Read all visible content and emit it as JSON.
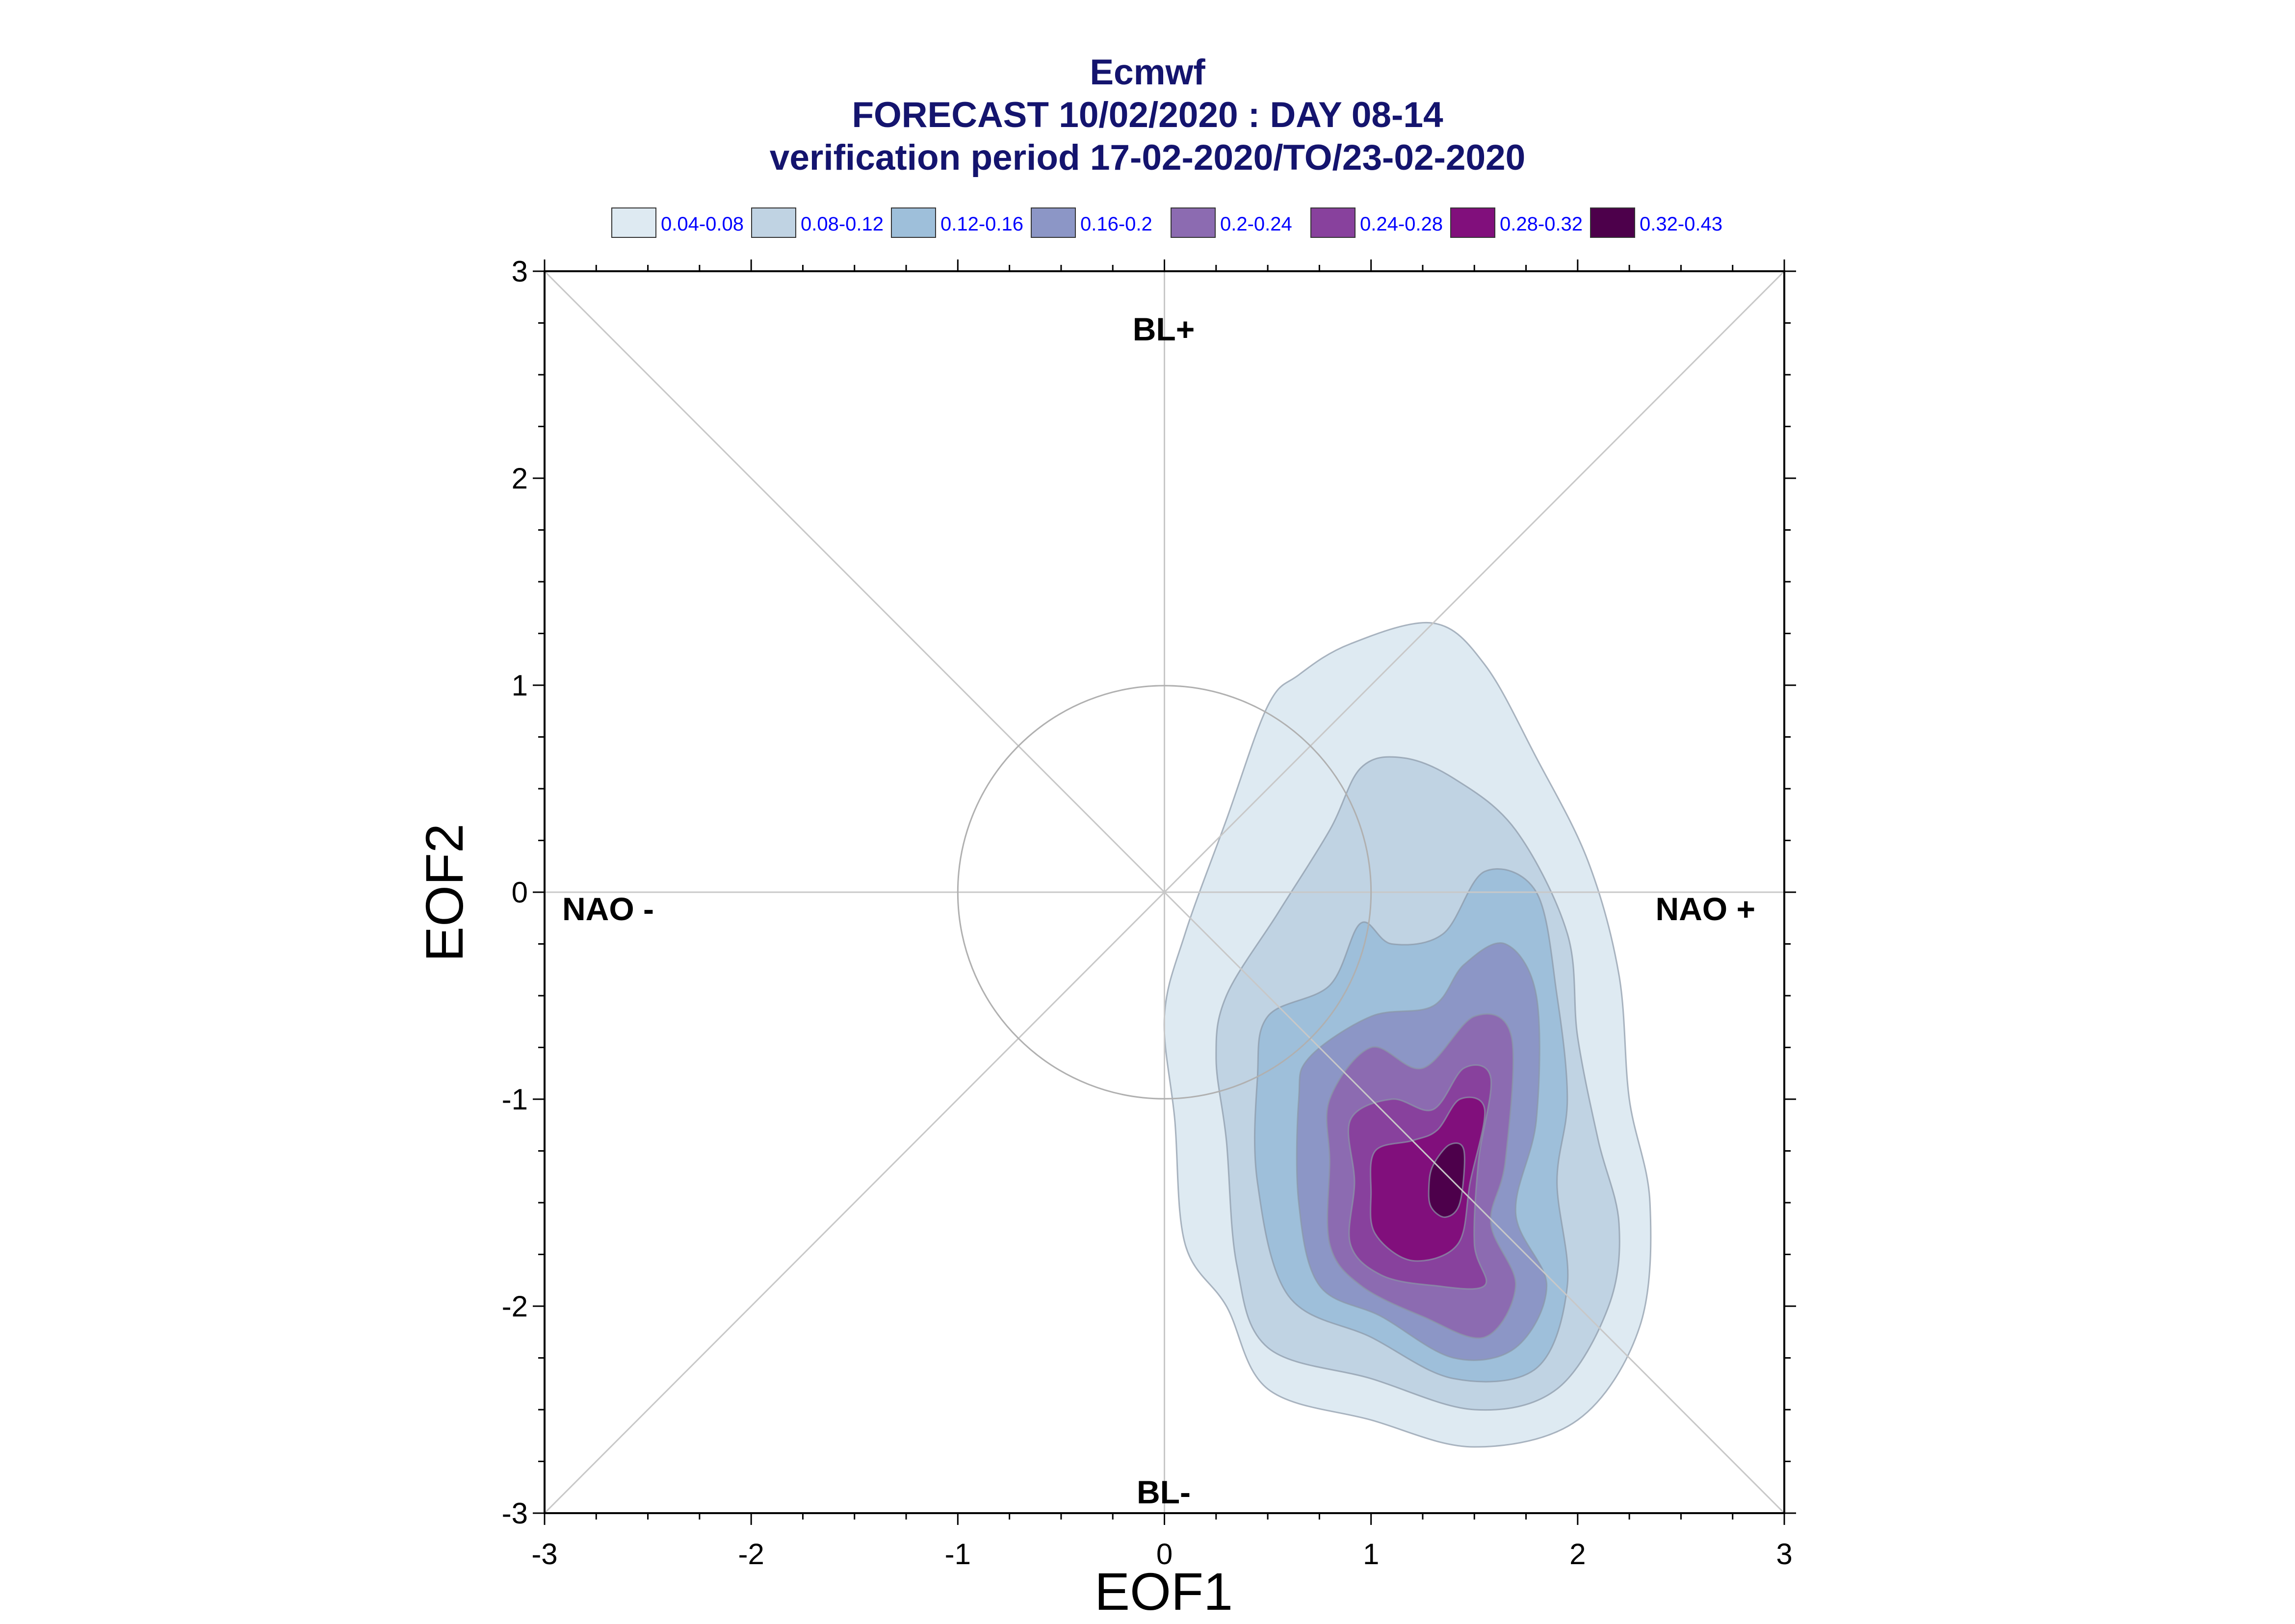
{
  "chart_data": {
    "type": "contour",
    "title_lines": [
      "Ecmwf",
      "FORECAST 10/02/2020 : DAY 08-14",
      "verification period 17-02-2020/TO/23-02-2020"
    ],
    "xlabel": "EOF1",
    "ylabel": "EOF2",
    "xlim": [
      -3,
      3
    ],
    "ylim": [
      -3,
      3
    ],
    "xticks": [
      "-3",
      "-2",
      "-1",
      "0",
      "1",
      "2",
      "3"
    ],
    "yticks": [
      "3",
      "2",
      "1",
      "0",
      "-1",
      "-2",
      "-3"
    ],
    "reference_circle_radius": 1,
    "region_labels": [
      "BL+",
      "BL-",
      "NAO -",
      "NAO +"
    ],
    "legend": [
      {
        "label": "0.04-0.08",
        "color": "#deeaf2"
      },
      {
        "label": "0.08-0.12",
        "color": "#c0d3e3"
      },
      {
        "label": "0.12-0.16",
        "color": "#9ebfda"
      },
      {
        "label": "0.16-0.2",
        "color": "#8c96c6"
      },
      {
        "label": "0.2-0.24",
        "color": "#8c6bb1"
      },
      {
        "label": "0.24-0.28",
        "color": "#88419d"
      },
      {
        "label": "0.28-0.32",
        "color": "#810f7c"
      },
      {
        "label": "0.32-0.43",
        "color": "#4d004b"
      }
    ],
    "contours": [
      {
        "level": "0.04-0.08",
        "points": [
          [
            0.1,
            -0.2
          ],
          [
            0.3,
            0.35
          ],
          [
            0.5,
            0.9
          ],
          [
            0.65,
            1.05
          ],
          [
            0.9,
            1.2
          ],
          [
            1.3,
            1.3
          ],
          [
            1.55,
            1.1
          ],
          [
            1.8,
            0.65
          ],
          [
            2.05,
            0.15
          ],
          [
            2.2,
            -0.4
          ],
          [
            2.25,
            -1.0
          ],
          [
            2.35,
            -1.5
          ],
          [
            2.3,
            -2.1
          ],
          [
            2.0,
            -2.55
          ],
          [
            1.5,
            -2.68
          ],
          [
            1.0,
            -2.55
          ],
          [
            0.5,
            -2.4
          ],
          [
            0.3,
            -2.0
          ],
          [
            0.1,
            -1.7
          ],
          [
            0.05,
            -1.1
          ],
          [
            0.0,
            -0.6
          ]
        ]
      },
      {
        "level": "0.08-0.12",
        "points": [
          [
            0.3,
            -0.5
          ],
          [
            0.55,
            -0.1
          ],
          [
            0.8,
            0.3
          ],
          [
            0.95,
            0.6
          ],
          [
            1.15,
            0.65
          ],
          [
            1.4,
            0.55
          ],
          [
            1.7,
            0.3
          ],
          [
            1.95,
            -0.2
          ],
          [
            2.0,
            -0.7
          ],
          [
            2.1,
            -1.2
          ],
          [
            2.2,
            -1.6
          ],
          [
            2.15,
            -2.0
          ],
          [
            1.9,
            -2.4
          ],
          [
            1.5,
            -2.5
          ],
          [
            1.0,
            -2.35
          ],
          [
            0.5,
            -2.2
          ],
          [
            0.35,
            -1.8
          ],
          [
            0.3,
            -1.2
          ],
          [
            0.25,
            -0.8
          ]
        ]
      },
      {
        "level": "0.12-0.16",
        "points": [
          [
            0.5,
            -0.6
          ],
          [
            0.8,
            -0.45
          ],
          [
            0.95,
            -0.15
          ],
          [
            1.1,
            -0.25
          ],
          [
            1.35,
            -0.2
          ],
          [
            1.55,
            0.1
          ],
          [
            1.8,
            0.0
          ],
          [
            1.9,
            -0.5
          ],
          [
            1.95,
            -1.0
          ],
          [
            1.9,
            -1.4
          ],
          [
            1.95,
            -1.9
          ],
          [
            1.8,
            -2.3
          ],
          [
            1.4,
            -2.35
          ],
          [
            1.0,
            -2.15
          ],
          [
            0.6,
            -1.95
          ],
          [
            0.45,
            -1.4
          ],
          [
            0.45,
            -0.9
          ]
        ]
      },
      {
        "level": "0.16-0.2",
        "points": [
          [
            0.7,
            -0.8
          ],
          [
            1.0,
            -0.6
          ],
          [
            1.3,
            -0.55
          ],
          [
            1.45,
            -0.35
          ],
          [
            1.65,
            -0.25
          ],
          [
            1.8,
            -0.5
          ],
          [
            1.8,
            -1.1
          ],
          [
            1.7,
            -1.55
          ],
          [
            1.85,
            -1.9
          ],
          [
            1.7,
            -2.2
          ],
          [
            1.4,
            -2.25
          ],
          [
            1.05,
            -2.05
          ],
          [
            0.75,
            -1.9
          ],
          [
            0.65,
            -1.5
          ],
          [
            0.65,
            -1.0
          ]
        ]
      },
      {
        "level": "0.2-0.24",
        "points": [
          [
            0.8,
            -1.0
          ],
          [
            1.0,
            -0.75
          ],
          [
            1.25,
            -0.85
          ],
          [
            1.5,
            -0.6
          ],
          [
            1.68,
            -0.7
          ],
          [
            1.65,
            -1.3
          ],
          [
            1.58,
            -1.6
          ],
          [
            1.7,
            -1.9
          ],
          [
            1.55,
            -2.15
          ],
          [
            1.25,
            -2.05
          ],
          [
            0.95,
            -1.9
          ],
          [
            0.8,
            -1.7
          ],
          [
            0.8,
            -1.3
          ]
        ]
      },
      {
        "level": "0.24-0.28",
        "points": [
          [
            0.9,
            -1.1
          ],
          [
            1.1,
            -1.0
          ],
          [
            1.3,
            -1.05
          ],
          [
            1.45,
            -0.85
          ],
          [
            1.58,
            -0.9
          ],
          [
            1.52,
            -1.3
          ],
          [
            1.5,
            -1.7
          ],
          [
            1.55,
            -1.9
          ],
          [
            1.3,
            -1.9
          ],
          [
            1.05,
            -1.85
          ],
          [
            0.9,
            -1.7
          ],
          [
            0.92,
            -1.4
          ]
        ]
      },
      {
        "level": "0.28-0.32",
        "points": [
          [
            1.02,
            -1.25
          ],
          [
            1.2,
            -1.2
          ],
          [
            1.32,
            -1.15
          ],
          [
            1.43,
            -1.0
          ],
          [
            1.55,
            -1.05
          ],
          [
            1.48,
            -1.4
          ],
          [
            1.42,
            -1.7
          ],
          [
            1.2,
            -1.78
          ],
          [
            1.02,
            -1.65
          ],
          [
            1.0,
            -1.45
          ]
        ]
      },
      {
        "level": "0.32-0.43",
        "points": [
          [
            1.3,
            -1.32
          ],
          [
            1.38,
            -1.22
          ],
          [
            1.45,
            -1.25
          ],
          [
            1.43,
            -1.5
          ],
          [
            1.36,
            -1.57
          ],
          [
            1.29,
            -1.52
          ],
          [
            1.28,
            -1.42
          ]
        ]
      }
    ]
  }
}
